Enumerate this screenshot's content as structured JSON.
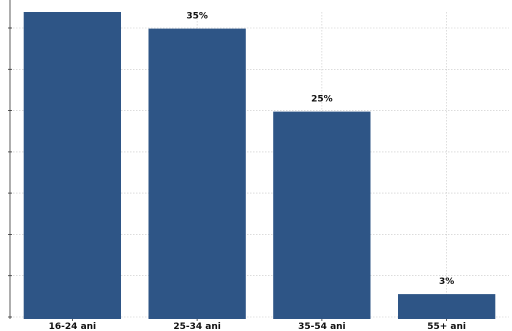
{
  "chart_data": {
    "type": "bar",
    "categories": [
      "16-24 ani",
      "25-34 ani",
      "35-54 ani",
      "55+ ani"
    ],
    "values": [
      37,
      35,
      25,
      3
    ],
    "value_labels": [
      "",
      "35%",
      "25%",
      "3%"
    ],
    "ylim": [
      0,
      37
    ],
    "grid": true,
    "colors": {
      "bar": "#2e5586",
      "grid": "#c8c8c8",
      "axis": "#333333"
    }
  }
}
